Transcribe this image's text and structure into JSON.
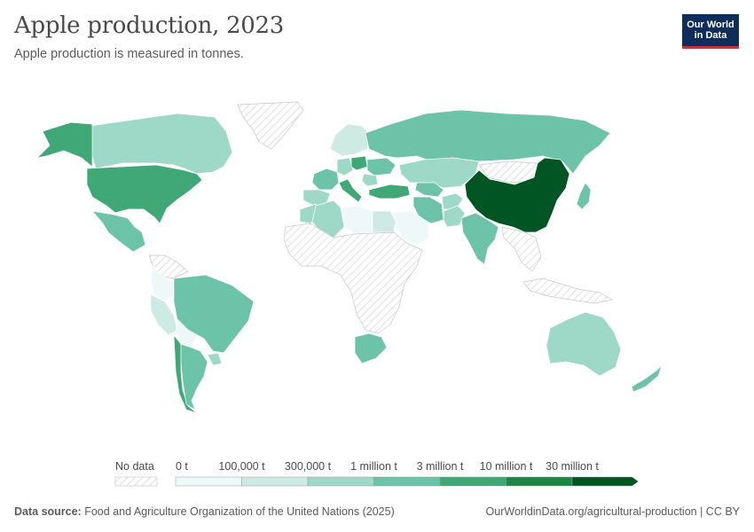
{
  "header": {
    "title": "Apple production, 2023",
    "subtitle": "Apple production is measured in tonnes."
  },
  "logo": {
    "line1": "Our World",
    "line2": "in Data"
  },
  "colors": {
    "no_data_stroke": "#cfcfcf",
    "bins": [
      "#eef8f8",
      "#cdeae3",
      "#9ed8c6",
      "#6cc3a7",
      "#3fa876",
      "#1f8544",
      "#005523"
    ],
    "border": "#ffffff"
  },
  "legend": {
    "no_data_label": "No data",
    "ticks": [
      "0 t",
      "100,000 t",
      "300,000 t",
      "1 million t",
      "3 million t",
      "10 million t",
      "30 million t"
    ]
  },
  "map_data": {
    "unit": "tonnes",
    "year": "2023",
    "bin_edges": [
      0,
      100000,
      300000,
      1000000,
      3000000,
      10000000,
      30000000
    ],
    "regions": [
      {
        "id": "china",
        "bin": 6
      },
      {
        "id": "united-states",
        "bin": 4
      },
      {
        "id": "turkey",
        "bin": 4
      },
      {
        "id": "poland",
        "bin": 4
      },
      {
        "id": "italy",
        "bin": 4
      },
      {
        "id": "alaska",
        "bin": 4
      },
      {
        "id": "chile",
        "bin": 4
      },
      {
        "id": "russia",
        "bin": 3
      },
      {
        "id": "india",
        "bin": 3
      },
      {
        "id": "iran",
        "bin": 3
      },
      {
        "id": "brazil",
        "bin": 3
      },
      {
        "id": "south-africa",
        "bin": 3
      },
      {
        "id": "mexico",
        "bin": 3
      },
      {
        "id": "argentina",
        "bin": 3
      },
      {
        "id": "ukraine",
        "bin": 3
      },
      {
        "id": "france",
        "bin": 3
      },
      {
        "id": "uzbekistan",
        "bin": 3
      },
      {
        "id": "new-zealand",
        "bin": 3
      },
      {
        "id": "japan",
        "bin": 3
      },
      {
        "id": "spain",
        "bin": 2
      },
      {
        "id": "canada",
        "bin": 2
      },
      {
        "id": "kazakhstan",
        "bin": 2
      },
      {
        "id": "australia",
        "bin": 2
      },
      {
        "id": "algeria",
        "bin": 2
      },
      {
        "id": "morocco",
        "bin": 2
      },
      {
        "id": "pakistan",
        "bin": 2
      },
      {
        "id": "afghanistan",
        "bin": 2
      },
      {
        "id": "germany",
        "bin": 2
      },
      {
        "id": "romania",
        "bin": 2
      },
      {
        "id": "uruguay",
        "bin": 2
      },
      {
        "id": "peru",
        "bin": 1
      },
      {
        "id": "scandinavia",
        "bin": 1
      },
      {
        "id": "libya",
        "bin": 0
      },
      {
        "id": "egypt",
        "bin": 1
      },
      {
        "id": "saudi-arabia",
        "bin": 0
      },
      {
        "id": "colombia",
        "bin": 0
      },
      {
        "id": "bolivia",
        "bin": 0
      },
      {
        "id": "mongolia",
        "bin": -1
      },
      {
        "id": "greenland",
        "bin": -1
      },
      {
        "id": "africa-rest",
        "bin": -1
      },
      {
        "id": "southeast-asia",
        "bin": -1
      },
      {
        "id": "venezuela",
        "bin": -1
      },
      {
        "id": "indonesia",
        "bin": -1
      }
    ]
  },
  "footer": {
    "source_label": "Data source:",
    "source": "Food and Agriculture Organization of the United Nations (2025)",
    "url": "OurWorldinData.org/agricultural-production | CC BY"
  }
}
